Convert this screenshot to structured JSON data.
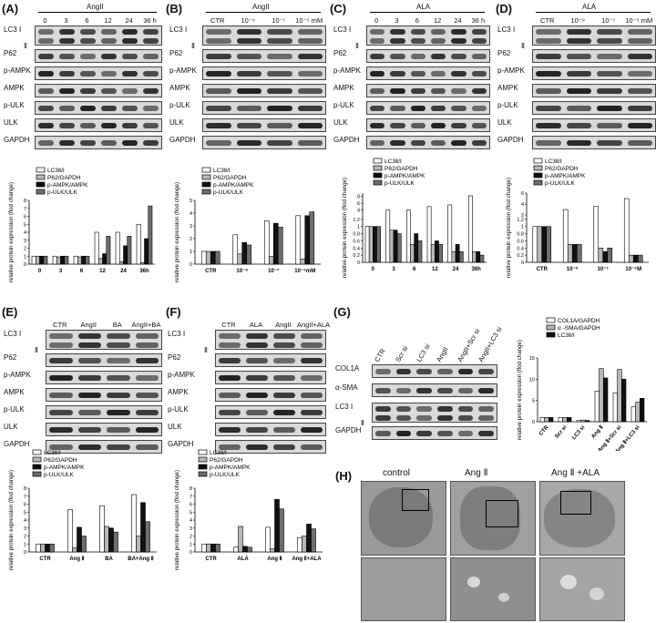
{
  "panels": [
    {
      "id": "A",
      "label": "(A)",
      "treatment": "AngII",
      "lanes": [
        "0",
        "3",
        "6",
        "12",
        "24",
        "36 h"
      ],
      "rows": [
        "LC3 Ⅰ",
        "Ⅱ",
        "P62",
        "p-AMPK",
        "AMPK",
        "p-ULK",
        "ULK",
        "GAPDH"
      ]
    },
    {
      "id": "B",
      "label": "(B)",
      "treatment": "AngII",
      "lanes": [
        "CTR",
        "10⁻⁹",
        "10⁻⁷",
        "10⁻⁵ mM"
      ],
      "rows": [
        "LC3 Ⅰ",
        "Ⅱ",
        "P62",
        "p-AMPK",
        "AMPK",
        "p-ULK",
        "ULK",
        "GAPDH"
      ]
    },
    {
      "id": "C",
      "label": "(C)",
      "treatment": "ALA",
      "lanes": [
        "0",
        "3",
        "6",
        "12",
        "24",
        "36 h"
      ],
      "rows": [
        "LC3 Ⅰ",
        "Ⅱ",
        "P62",
        "p-AMPK",
        "AMPK",
        "p-ULK",
        "ULK",
        "GAPDH"
      ]
    },
    {
      "id": "D",
      "label": "(D)",
      "treatment": "ALA",
      "lanes": [
        "CTR",
        "10⁻⁹",
        "10⁻⁷",
        "10⁻⁵ mM"
      ],
      "rows": [
        "LC3 Ⅰ",
        "Ⅱ",
        "P62",
        "p-AMPK",
        "AMPK",
        "p-ULK",
        "ULK",
        "GAPDH"
      ]
    },
    {
      "id": "E",
      "label": "(E)",
      "treatment": "",
      "lanes": [
        "CTR",
        "AngII",
        "BA",
        "AngII+BA"
      ],
      "rows": [
        "LC3 Ⅰ",
        "Ⅱ",
        "P62",
        "p-AMPK",
        "AMPK",
        "p-ULK",
        "ULK",
        "GAPDH"
      ]
    },
    {
      "id": "F",
      "label": "(F)",
      "treatment": "",
      "lanes": [
        "CTR",
        "ALA",
        "AngII",
        "AngII+ALA"
      ],
      "rows": [
        "LC3 Ⅰ",
        "Ⅱ",
        "P62",
        "p-AMPK",
        "AMPK",
        "p-ULK",
        "ULK",
        "GAPDH"
      ]
    },
    {
      "id": "G",
      "label": "(G)",
      "treatment": "",
      "lanes": [
        "CTR",
        "Scr si",
        "LC3 si",
        "AngII",
        "AngII+Scr si",
        "AngII+LC3 si"
      ],
      "rows": [
        "COL1A",
        "α-SMA",
        "LC3 Ⅰ",
        "Ⅱ",
        "GAPDH"
      ]
    },
    {
      "id": "H",
      "label": "(H)",
      "treatment": "",
      "tem": [
        "control",
        "Ang Ⅱ",
        "Ang Ⅱ +ALA"
      ]
    }
  ],
  "colors": {
    "s1": "#ffffff",
    "s2": "#b8b8b8",
    "s3": "#111111",
    "s4": "#6e6e6e"
  },
  "chart_data": [
    {
      "id": "A",
      "type": "bar",
      "categories": [
        "0",
        "3",
        "6",
        "12",
        "24",
        "36h"
      ],
      "ylabel": "relative protein expression (flod change)",
      "ylim": [
        0,
        8
      ],
      "yticks": [
        0,
        1,
        2,
        3,
        4,
        5,
        6,
        7,
        8
      ],
      "series": [
        {
          "name": "LC3Ⅱ/Ⅰ",
          "values": [
            1,
            1,
            1,
            4.0,
            4.0,
            5.0
          ]
        },
        {
          "name": "P62/GAPDH",
          "values": [
            1,
            0.9,
            0.9,
            0.7,
            0.3,
            0.2
          ]
        },
        {
          "name": "p-AMPK/AMPK",
          "values": [
            1,
            1.0,
            1.0,
            1.3,
            2.3,
            3.2
          ]
        },
        {
          "name": "p-ULK/ULK",
          "values": [
            1,
            1.0,
            1.0,
            3.5,
            3.5,
            7.3
          ]
        }
      ]
    },
    {
      "id": "B",
      "type": "bar",
      "categories": [
        "CTR",
        "10⁻⁹",
        "10⁻⁷",
        "10⁻⁵mM"
      ],
      "ylabel": "relative protein expression (flod change)",
      "ylim": [
        0,
        5
      ],
      "yticks": [
        0,
        1,
        2,
        3,
        4,
        5
      ],
      "series": [
        {
          "name": "LC3Ⅱ/Ⅰ",
          "values": [
            1,
            2.3,
            3.4,
            3.8
          ]
        },
        {
          "name": "P62/GAPDH",
          "values": [
            1,
            0.8,
            0.6,
            0.4
          ]
        },
        {
          "name": "p-AMPK/AMPK",
          "values": [
            1,
            1.7,
            3.2,
            3.8
          ]
        },
        {
          "name": "p-ULK/ULK",
          "values": [
            1,
            1.5,
            2.9,
            4.1
          ]
        }
      ]
    },
    {
      "id": "C",
      "type": "bar",
      "categories": [
        "0",
        "3",
        "6",
        "12",
        "24",
        "36h"
      ],
      "ylabel": "relative protein expression (flod change)",
      "ylim": [
        0,
        9
      ],
      "yticks": [
        0,
        0.2,
        0.4,
        0.6,
        0.8,
        1.0,
        1.2,
        4,
        6,
        8
      ],
      "series": [
        {
          "name": "LC3Ⅱ/Ⅰ",
          "values": [
            1,
            4.0,
            4.0,
            5.0,
            5.5,
            8.2
          ]
        },
        {
          "name": "P62/GAPDH",
          "values": [
            1,
            0.9,
            0.5,
            0.5,
            0.3,
            0.3
          ]
        },
        {
          "name": "p-AMPK/AMPK",
          "values": [
            1,
            0.9,
            0.8,
            0.6,
            0.5,
            0.3
          ]
        },
        {
          "name": "p-ULK/ULK",
          "values": [
            1,
            0.8,
            0.6,
            0.5,
            0.3,
            0.2
          ]
        }
      ]
    },
    {
      "id": "D",
      "type": "bar",
      "categories": [
        "CTR",
        "10⁻⁹",
        "10⁻⁷",
        "10⁻⁵M"
      ],
      "ylabel": "relative protein expression (flod change)",
      "ylim": [
        0,
        6
      ],
      "yticks": [
        0,
        0.2,
        0.4,
        0.6,
        0.8,
        1.0,
        1.2,
        2,
        4,
        6
      ],
      "series": [
        {
          "name": "LC3Ⅱ/Ⅰ",
          "values": [
            1,
            3.0,
            3.6,
            5.0
          ]
        },
        {
          "name": "P62/GAPDH",
          "values": [
            1,
            0.5,
            0.4,
            0.2
          ]
        },
        {
          "name": "p-AMPK/AMPK",
          "values": [
            1,
            0.5,
            0.3,
            0.2
          ]
        },
        {
          "name": "p-ULK/ULK",
          "values": [
            1,
            0.5,
            0.4,
            0.2
          ]
        }
      ]
    },
    {
      "id": "E",
      "type": "bar",
      "categories": [
        "CTR",
        "Ang Ⅱ",
        "BA",
        "BA+Ang Ⅱ"
      ],
      "ylabel": "relative protein expression (flod change)",
      "ylim": [
        0,
        8
      ],
      "yticks": [
        0,
        1,
        2,
        3,
        4,
        5,
        6,
        7,
        8
      ],
      "series": [
        {
          "name": "LC3Ⅱ/Ⅰ",
          "values": [
            1,
            5.3,
            5.8,
            7.2
          ]
        },
        {
          "name": "P62/GAPDH",
          "values": [
            1,
            0.5,
            3.2,
            2.0
          ]
        },
        {
          "name": "p-AMPK/AMPK",
          "values": [
            1,
            3.1,
            3.0,
            6.2
          ]
        },
        {
          "name": "p-ULK/ULK",
          "values": [
            1,
            2.0,
            2.5,
            3.8
          ]
        }
      ]
    },
    {
      "id": "F",
      "type": "bar",
      "categories": [
        "CTR",
        "ALA",
        "Ang Ⅱ",
        "Ang Ⅱ+ALA"
      ],
      "ylabel": "relative protein expression (flod change)",
      "ylim": [
        0,
        8
      ],
      "yticks": [
        0,
        1,
        2,
        3,
        4,
        5,
        6,
        7,
        8
      ],
      "series": [
        {
          "name": "LC3Ⅱ/Ⅰ",
          "values": [
            1,
            0.6,
            3.1,
            1.8
          ]
        },
        {
          "name": "P62/GAPDH",
          "values": [
            1,
            3.2,
            0.4,
            2.0
          ]
        },
        {
          "name": "p-AMPK/AMPK",
          "values": [
            1,
            0.7,
            6.6,
            3.5
          ]
        },
        {
          "name": "p-ULK/ULK",
          "values": [
            1,
            0.6,
            5.4,
            2.9
          ]
        }
      ]
    },
    {
      "id": "G",
      "type": "bar",
      "categories": [
        "CTR",
        "Scr si",
        "LC3 si",
        "Ang Ⅱ",
        "Ang Ⅱ+Scr si",
        "Ang Ⅱ+LC3 si"
      ],
      "ylabel": "relative protein expression (flod change)",
      "ylim": [
        0,
        15
      ],
      "yticks": [
        0,
        5,
        10,
        15
      ],
      "series": [
        {
          "name": "COL1A/GAPDH",
          "values": [
            1,
            1,
            0.3,
            7.2,
            6.8,
            3.5
          ]
        },
        {
          "name": "α -SMA/GAPDH",
          "values": [
            1,
            1,
            0.4,
            12.5,
            12.3,
            4.6
          ]
        },
        {
          "name": "LC3Ⅱ/Ⅰ",
          "values": [
            1,
            1,
            0.3,
            10.3,
            10.0,
            5.5
          ]
        }
      ]
    }
  ]
}
